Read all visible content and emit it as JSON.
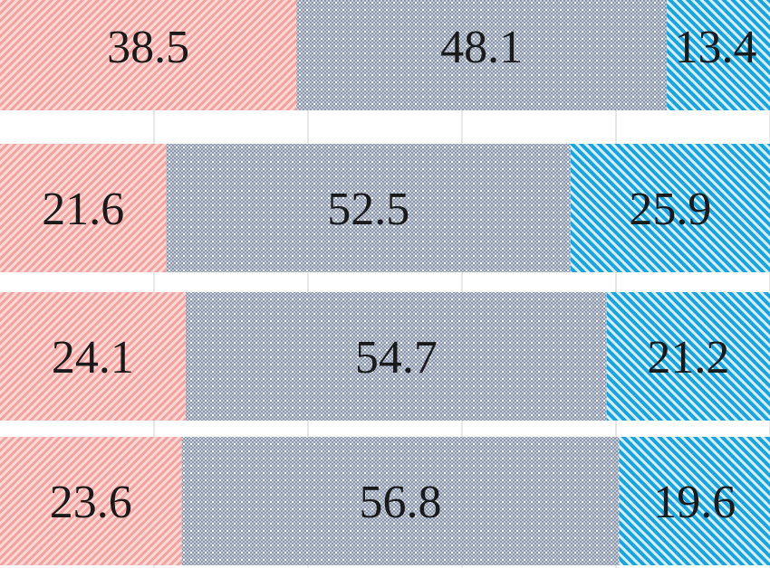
{
  "chart_data": {
    "type": "bar",
    "orientation": "horizontal",
    "stacked": true,
    "categories": [
      "",
      "",
      "",
      ""
    ],
    "series": [
      {
        "values": [
          38.5,
          21.6,
          24.1,
          23.6
        ],
        "color": "#f08a87",
        "pattern": "diagonal-stripes"
      },
      {
        "values": [
          48.1,
          52.5,
          54.7,
          56.8
        ],
        "color": "#8592a8",
        "pattern": "dotted-checker"
      },
      {
        "values": [
          13.4,
          25.9,
          21.2,
          19.6
        ],
        "color": "#1ea7e0",
        "pattern": "diagonal-stripes"
      }
    ],
    "xlim": [
      0,
      100
    ],
    "grid": true,
    "legend": "none",
    "data_labels": true
  }
}
